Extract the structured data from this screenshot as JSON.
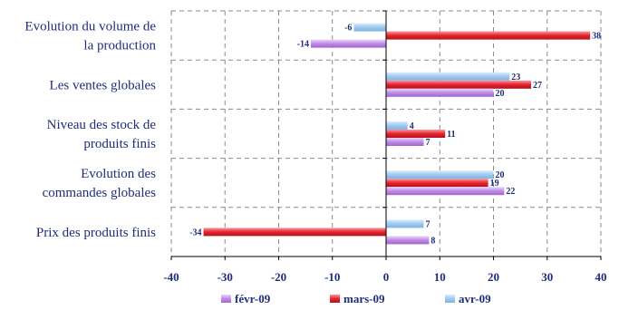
{
  "chart_data": {
    "type": "bar",
    "orientation": "horizontal",
    "categories": [
      [
        "Evolution du volume de",
        "la production"
      ],
      [
        "Les ventes globales"
      ],
      [
        "Niveau des stock de",
        "produits finis"
      ],
      [
        "Evolution des",
        "commandes globales"
      ],
      [
        "Prix des produits finis"
      ]
    ],
    "series": [
      {
        "name": "avr-09",
        "color": "#9fc9ee",
        "values": [
          -6,
          23,
          4,
          20,
          7
        ]
      },
      {
        "name": "mars-09",
        "color": "#e8222c",
        "values": [
          38,
          27,
          11,
          19,
          -34
        ]
      },
      {
        "name": "févr-09",
        "color": "#c08ae6",
        "values": [
          -14,
          20,
          7,
          22,
          8
        ]
      }
    ],
    "legend_order": [
      "févr-09",
      "mars-09",
      "avr-09"
    ],
    "xlim": [
      -40,
      40
    ],
    "xticks": [
      -40,
      -30,
      -20,
      -10,
      0,
      10,
      20,
      30,
      40
    ],
    "grid": true,
    "legend": "bottom"
  }
}
